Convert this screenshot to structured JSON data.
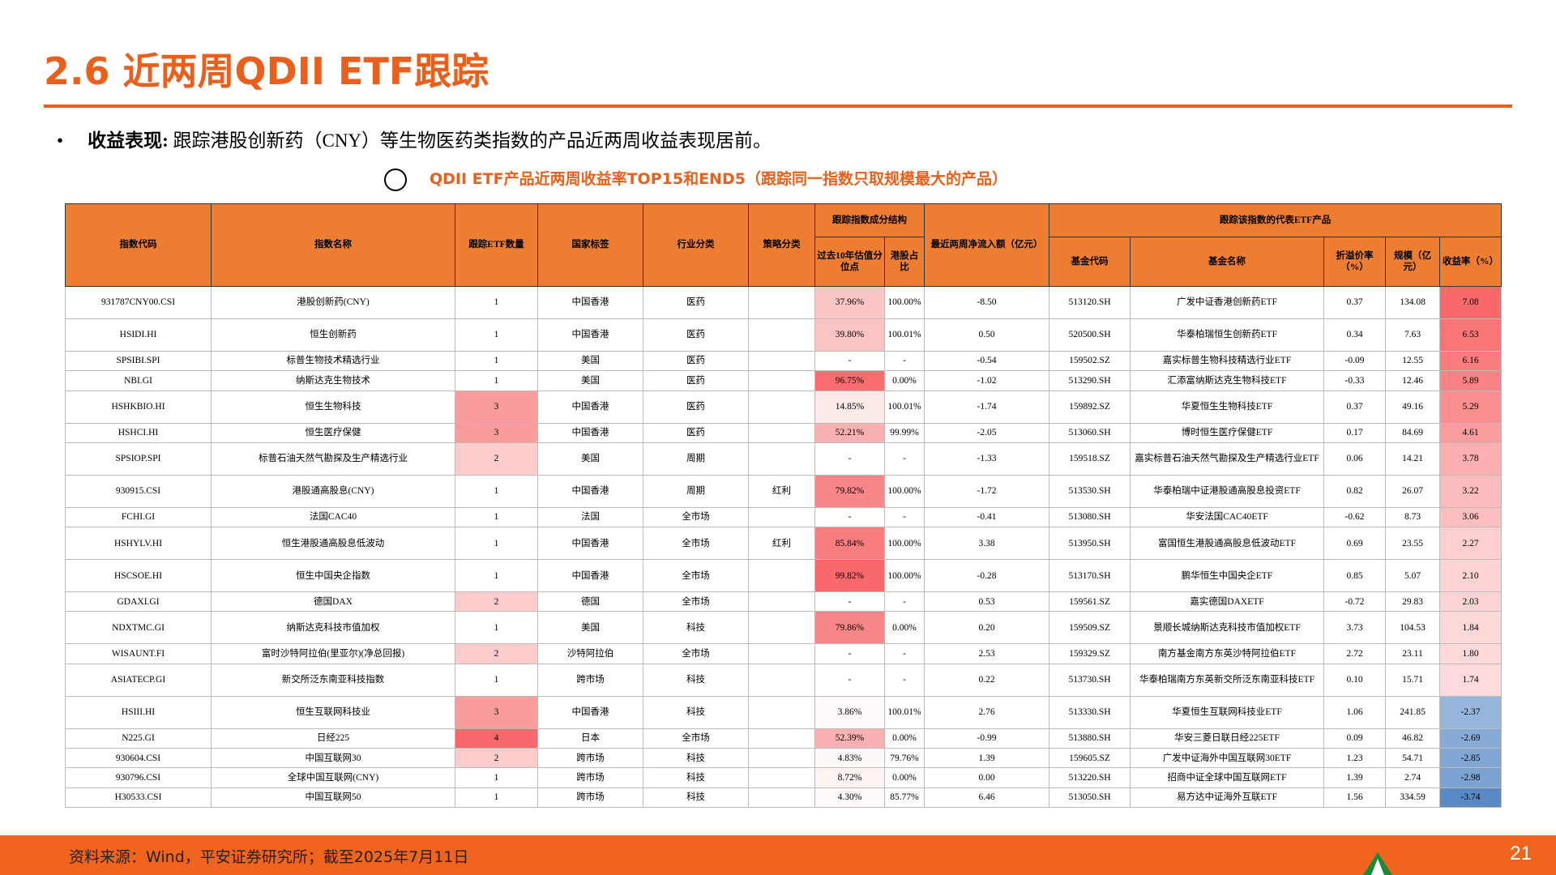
{
  "header": {
    "title": "2.6 近两周QDII ETF跟踪"
  },
  "bullet": {
    "label": "收益表现:",
    "text": "跟踪港股创新药（CNY）等生物医药类指数的产品近两周收益表现居前。"
  },
  "caption": "QDII ETF产品近两周收益率TOP15和END5（跟踪同一指数只取规模最大的产品）",
  "table": {
    "groups": {
      "structure": "跟踪指数成分结构",
      "product": "跟踪该指数的代表ETF产品"
    },
    "headers": [
      "指数代码",
      "指数名称",
      "跟踪ETF数量",
      "国家标签",
      "行业分类",
      "策略分类",
      "过去10年估值分位点",
      "港股占比",
      "最近两周净流入额（亿元）",
      "基金代码",
      "基金名称",
      "折溢价率（%）",
      "规模（亿元）",
      "收益率（%）"
    ],
    "rows": [
      [
        "931787CNY00.CSI",
        "港股创新药(CNY)",
        "1",
        "中国香港",
        "医药",
        null,
        "37.96%",
        "100.00%",
        "-8.50",
        "513120.SH",
        "广发中证香港创新药ETF",
        "0.37",
        "134.08",
        "7.08"
      ],
      [
        "HSIDI.HI",
        "恒生创新药",
        "1",
        "中国香港",
        "医药",
        null,
        "39.80%",
        "100.01%",
        "0.50",
        "520500.SH",
        "华泰柏瑞恒生创新药ETF",
        "0.34",
        "7.63",
        "6.53"
      ],
      [
        "SPSIBI.SPI",
        "标普生物技术精选行业",
        "1",
        "美国",
        "医药",
        null,
        "-",
        "-",
        "-0.54",
        "159502.SZ",
        "嘉实标普生物科技精选行业ETF",
        "-0.09",
        "12.55",
        "6.16"
      ],
      [
        "NBI.GI",
        "纳斯达克生物技术",
        "1",
        "美国",
        "医药",
        null,
        "96.75%",
        "0.00%",
        "-1.02",
        "513290.SH",
        "汇添富纳斯达克生物科技ETF",
        "-0.33",
        "12.46",
        "5.89"
      ],
      [
        "HSHKBIO.HI",
        "恒生生物科技",
        "3",
        "中国香港",
        "医药",
        null,
        "14.85%",
        "100.01%",
        "-1.74",
        "159892.SZ",
        "华夏恒生生物科技ETF",
        "0.37",
        "49.16",
        "5.29"
      ],
      [
        "HSHCI.HI",
        "恒生医疗保健",
        "3",
        "中国香港",
        "医药",
        null,
        "52.21%",
        "99.99%",
        "-2.05",
        "513060.SH",
        "博时恒生医疗保健ETF",
        "0.17",
        "84.69",
        "4.61"
      ],
      [
        "SPSIOP.SPI",
        "标普石油天然气勘探及生产精选行业",
        "2",
        "美国",
        "周期",
        null,
        "-",
        "-",
        "-1.33",
        "159518.SZ",
        "嘉实标普石油天然气勘探及生产精选行业ETF",
        "0.06",
        "14.21",
        "3.78"
      ],
      [
        "930915.CSI",
        "港股通高股息(CNY)",
        "1",
        "中国香港",
        "周期",
        "红利",
        "79.82%",
        "100.00%",
        "-1.72",
        "513530.SH",
        "华泰柏瑞中证港股通高股息投资ETF",
        "0.82",
        "26.07",
        "3.22"
      ],
      [
        "FCHI.GI",
        "法国CAC40",
        "1",
        "法国",
        "全市场",
        null,
        "-",
        "-",
        "-0.41",
        "513080.SH",
        "华安法国CAC40ETF",
        "-0.62",
        "8.73",
        "3.06"
      ],
      [
        "HSHYLV.HI",
        "恒生港股通高股息低波动",
        "1",
        "中国香港",
        "全市场",
        "红利",
        "85.84%",
        "100.00%",
        "3.38",
        "513950.SH",
        "富国恒生港股通高股息低波动ETF",
        "0.69",
        "23.55",
        "2.27"
      ],
      [
        "HSCSOE.HI",
        "恒生中国央企指数",
        "1",
        "中国香港",
        "全市场",
        null,
        "99.82%",
        "100.00%",
        "-0.28",
        "513170.SH",
        "鹏华恒生中国央企ETF",
        "0.85",
        "5.07",
        "2.10"
      ],
      [
        "GDAXI.GI",
        "德国DAX",
        "2",
        "德国",
        "全市场",
        null,
        "-",
        "-",
        "0.53",
        "159561.SZ",
        "嘉实德国DAXETF",
        "-0.72",
        "29.83",
        "2.03"
      ],
      [
        "NDXTMC.GI",
        "纳斯达克科技市值加权",
        "1",
        "美国",
        "科技",
        null,
        "79.86%",
        "0.00%",
        "0.20",
        "159509.SZ",
        "景顺长城纳斯达克科技市值加权ETF",
        "3.73",
        "104.53",
        "1.84"
      ],
      [
        "WISAUNT.FI",
        "富时沙特阿拉伯(里亚尔)(净总回报)",
        "2",
        "沙特阿拉伯",
        "全市场",
        null,
        "-",
        "-",
        "2.53",
        "159329.SZ",
        "南方基金南方东英沙特阿拉伯ETF",
        "2.72",
        "23.11",
        "1.80"
      ],
      [
        "ASIATECP.GI",
        "新交所泛东南亚科技指数",
        "1",
        "跨市场",
        "科技",
        null,
        "-",
        "-",
        "0.22",
        "513730.SH",
        "华泰柏瑞南方东英新交所泛东南亚科技ETF",
        "0.10",
        "15.71",
        "1.74"
      ],
      [
        "HSIII.HI",
        "恒生互联网科技业",
        "3",
        "中国香港",
        "科技",
        null,
        "3.86%",
        "100.01%",
        "2.76",
        "513330.SH",
        "华夏恒生互联网科技业ETF",
        "1.06",
        "241.85",
        "-2.37"
      ],
      [
        "N225.GI",
        "日经225",
        "4",
        "日本",
        "全市场",
        null,
        "52.39%",
        "0.00%",
        "-0.99",
        "513880.SH",
        "华安三菱日联日经225ETF",
        "0.09",
        "46.82",
        "-2.69"
      ],
      [
        "930604.CSI",
        "中国互联网30",
        "2",
        "跨市场",
        "科技",
        null,
        "4.83%",
        "79.76%",
        "1.39",
        "159605.SZ",
        "广发中证海外中国互联网30ETF",
        "1.23",
        "54.71",
        "-2.85"
      ],
      [
        "930796.CSI",
        "全球中国互联网(CNY)",
        "1",
        "跨市场",
        "科技",
        null,
        "8.72%",
        "0.00%",
        "0.00",
        "513220.SH",
        "招商中证全球中国互联网ETF",
        "1.39",
        "2.74",
        "-2.98"
      ],
      [
        "H30533.CSI",
        "中国互联网50",
        "1",
        "跨市场",
        "科技",
        null,
        "4.30%",
        "85.77%",
        "6.46",
        "513050.SH",
        "易方达中证海外互联ETF",
        "1.56",
        "334.59",
        "-3.74"
      ]
    ]
  },
  "footer": {
    "source": "资料来源：Wind，平安证券研究所；截至2025年7月11日",
    "page": "21"
  }
}
